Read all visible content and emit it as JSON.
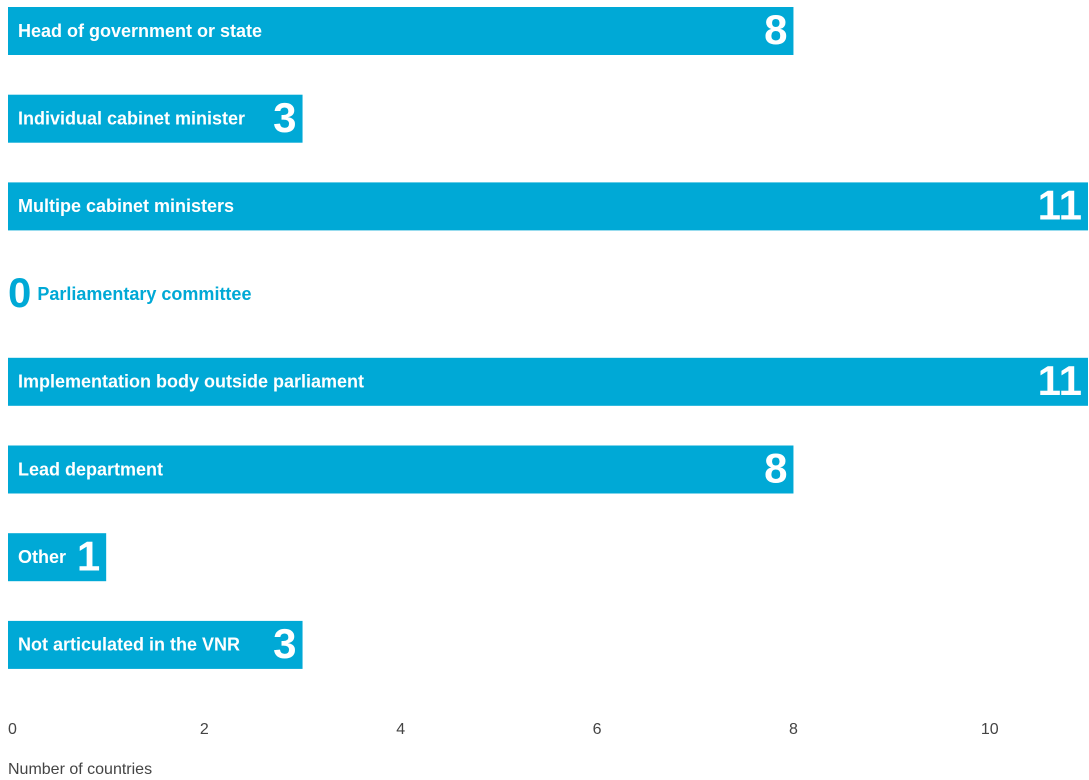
{
  "chart_data": {
    "type": "hbar",
    "categories": [
      "Head of government or state",
      "Individual cabinet minister",
      "Multipe cabinet ministers",
      "Parliamentary committee",
      "Implementation body outside parliament",
      "Lead department",
      "Other",
      "Not articulated in the VNR"
    ],
    "values": [
      8,
      3,
      11,
      0,
      11,
      8,
      1,
      3
    ],
    "color": "#00a9d6",
    "xlim": [
      0,
      11
    ],
    "xticks": [
      0,
      2,
      4,
      6,
      8,
      10
    ],
    "x_label": "Number of countries",
    "grid": false
  }
}
